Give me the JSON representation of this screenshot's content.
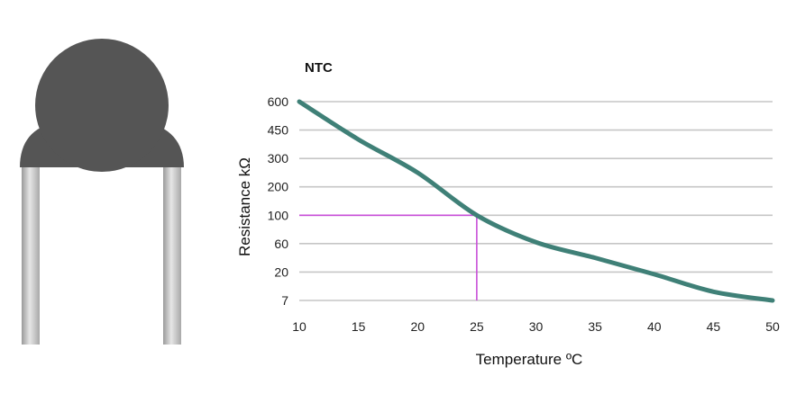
{
  "chart_data": {
    "type": "line",
    "title": "NTC",
    "xlabel": "Temperature ºC",
    "ylabel": "Resistance kΩ",
    "x_ticks": [
      "10",
      "15",
      "20",
      "25",
      "30",
      "35",
      "40",
      "45",
      "50"
    ],
    "y_ticks": [
      "600",
      "450",
      "300",
      "200",
      "100",
      "60",
      "20",
      "7"
    ],
    "xlim": [
      10,
      50
    ],
    "grid": true,
    "series": [
      {
        "color": "#3f8077",
        "points": [
          {
            "x": 10,
            "y": 600
          },
          {
            "x": 15,
            "y": 400
          },
          {
            "x": 20,
            "y": 250
          },
          {
            "x": 25,
            "y": 100
          },
          {
            "x": 30,
            "y": 62
          },
          {
            "x": 35,
            "y": 40
          },
          {
            "x": 40,
            "y": 19
          },
          {
            "x": 45,
            "y": 11
          },
          {
            "x": 50,
            "y": 7
          }
        ]
      }
    ],
    "annotation": {
      "x": 25,
      "y": 100,
      "color": "#c84fd8"
    },
    "thermistor_image": {
      "body_color": "#555555",
      "lead_color": "#bdbdbd"
    }
  }
}
